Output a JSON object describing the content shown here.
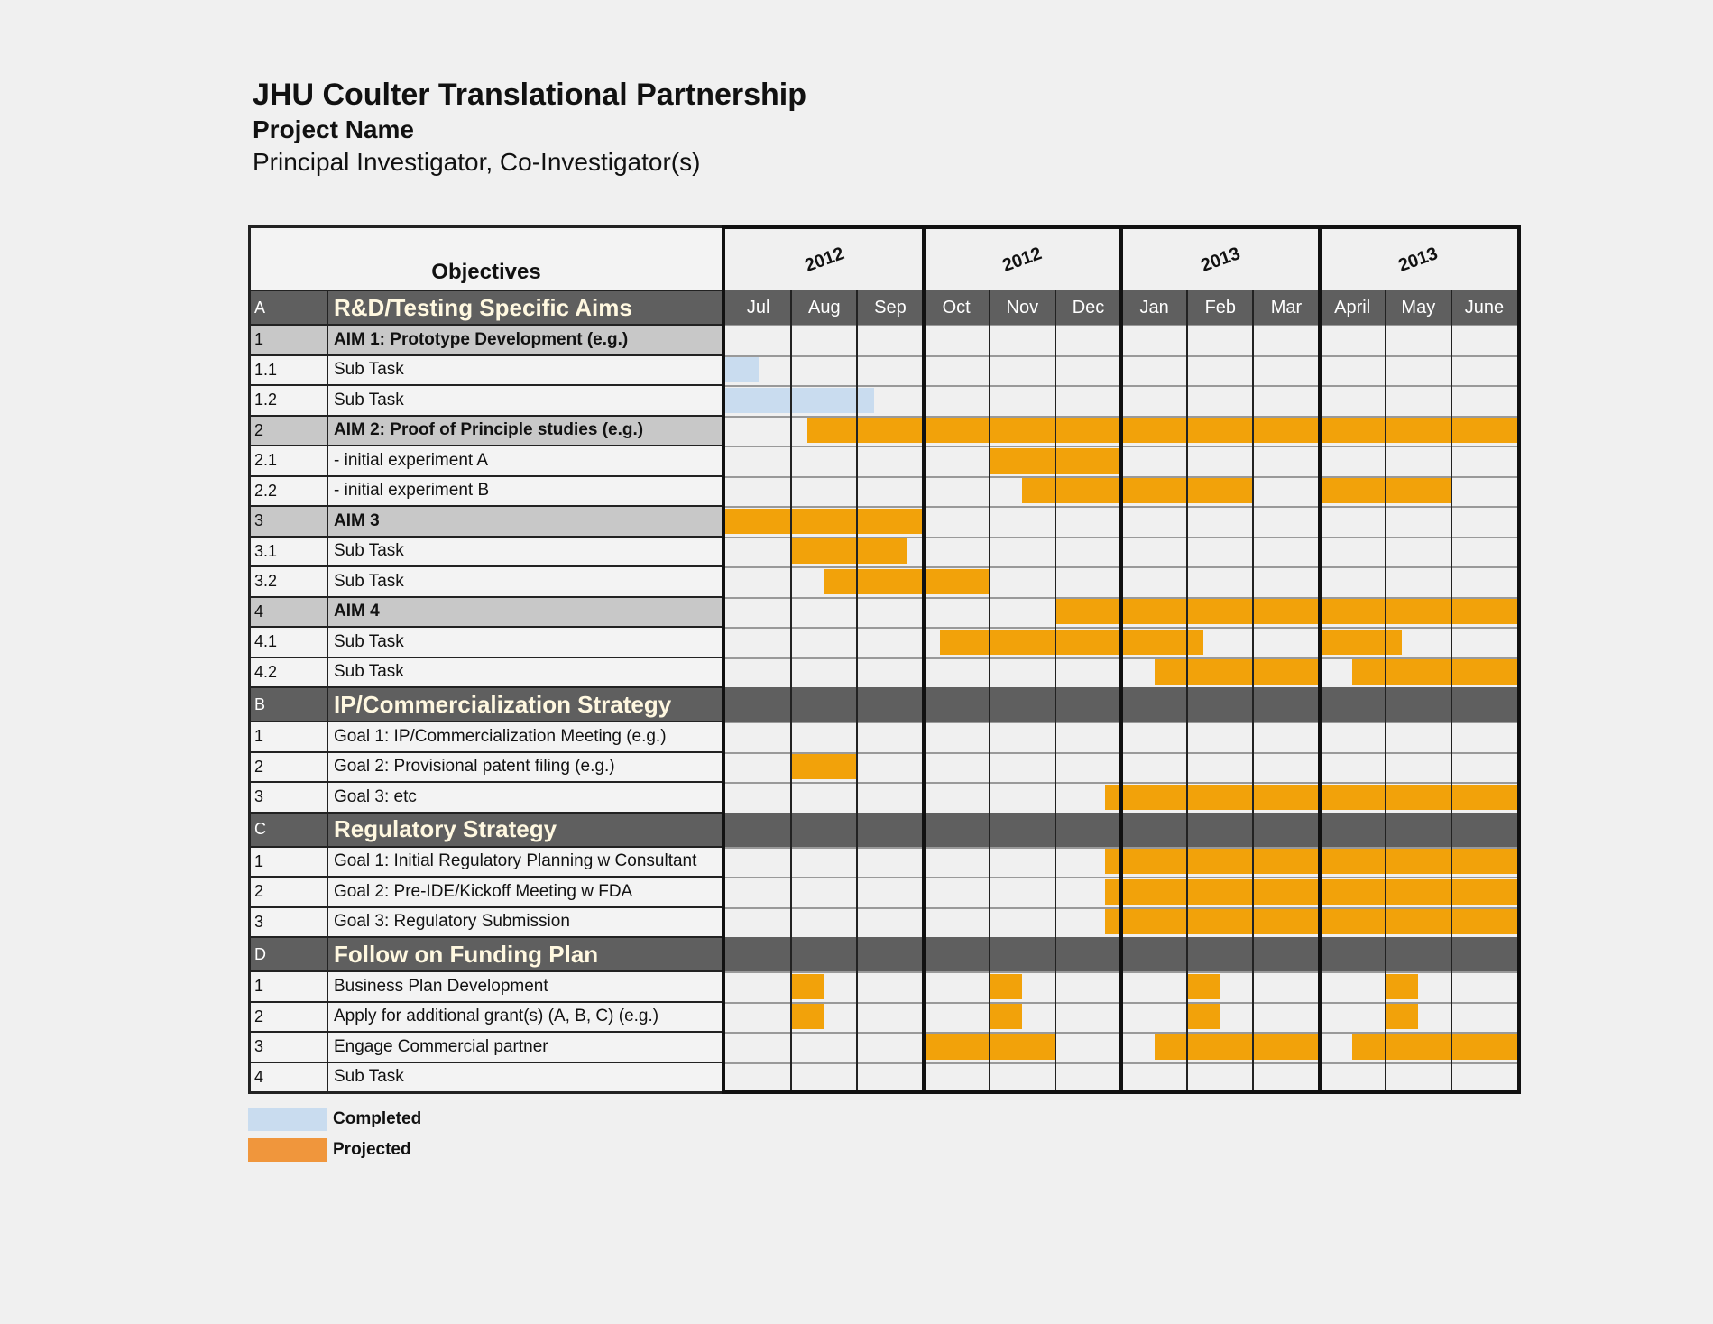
{
  "header": {
    "title": "JHU Coulter Translational Partnership",
    "subtitle": "Project Name",
    "investigators": "Principal Investigator, Co-Investigator(s)"
  },
  "objectives_label": "Objectives",
  "years": [
    "2012",
    "2012",
    "2013",
    "2013"
  ],
  "months": [
    "Jul",
    "Aug",
    "Sep",
    "Oct",
    "Nov",
    "Dec",
    "Jan",
    "Feb",
    "Mar",
    "April",
    "May",
    "June"
  ],
  "rows": [
    {
      "id": "A",
      "label": "R&D/Testing Specific Aims",
      "type": "section",
      "bars": []
    },
    {
      "id": "1",
      "label": "AIM 1: Prototype Development (e.g.)",
      "type": "aim",
      "bars": []
    },
    {
      "id": "1.1",
      "label": "Sub Task",
      "type": "task",
      "bars": [
        {
          "start": 0,
          "end": 0.5,
          "status": "completed"
        }
      ]
    },
    {
      "id": "1.2",
      "label": "Sub Task",
      "type": "task",
      "bars": [
        {
          "start": 0,
          "end": 2.25,
          "status": "completed"
        }
      ]
    },
    {
      "id": "2",
      "label": "AIM 2: Proof of Principle studies (e.g.)",
      "type": "aim",
      "bars": [
        {
          "start": 1.25,
          "end": 12,
          "status": "projected"
        }
      ]
    },
    {
      "id": "2.1",
      "label": " - initial experiment A",
      "type": "task",
      "bars": [
        {
          "start": 4,
          "end": 6,
          "status": "projected"
        }
      ]
    },
    {
      "id": "2.2",
      "label": " - initial experiment B",
      "type": "task",
      "bars": [
        {
          "start": 4.5,
          "end": 8,
          "status": "projected"
        },
        {
          "start": 9,
          "end": 11,
          "status": "projected"
        }
      ]
    },
    {
      "id": "3",
      "label": "AIM 3",
      "type": "aim",
      "bars": [
        {
          "start": 0,
          "end": 3,
          "status": "projected"
        }
      ]
    },
    {
      "id": "3.1",
      "label": "Sub Task",
      "type": "task",
      "bars": [
        {
          "start": 1,
          "end": 2.75,
          "status": "projected"
        }
      ]
    },
    {
      "id": "3.2",
      "label": "Sub Task",
      "type": "task",
      "bars": [
        {
          "start": 1.5,
          "end": 4,
          "status": "projected"
        }
      ]
    },
    {
      "id": "4",
      "label": "AIM 4",
      "type": "aim",
      "bars": [
        {
          "start": 5,
          "end": 12,
          "status": "projected"
        }
      ]
    },
    {
      "id": "4.1",
      "label": "Sub Task",
      "type": "task",
      "bars": [
        {
          "start": 3.25,
          "end": 7.25,
          "status": "projected"
        },
        {
          "start": 9,
          "end": 10.25,
          "status": "projected"
        }
      ]
    },
    {
      "id": "4.2",
      "label": "Sub Task",
      "type": "task",
      "bars": [
        {
          "start": 6.5,
          "end": 9,
          "status": "projected"
        },
        {
          "start": 9.5,
          "end": 12,
          "status": "projected"
        }
      ]
    },
    {
      "id": "B",
      "label": "IP/Commercialization Strategy",
      "type": "section",
      "bars": []
    },
    {
      "id": "1",
      "label": "Goal 1: IP/Commercialization Meeting (e.g.)",
      "type": "task",
      "bars": []
    },
    {
      "id": "2",
      "label": "Goal 2: Provisional patent filing (e.g.)",
      "type": "task",
      "bars": [
        {
          "start": 1,
          "end": 2,
          "status": "projected"
        }
      ]
    },
    {
      "id": "3",
      "label": "Goal 3: etc",
      "type": "task",
      "bars": [
        {
          "start": 5.75,
          "end": 12,
          "status": "projected"
        }
      ]
    },
    {
      "id": "C",
      "label": "Regulatory Strategy",
      "type": "section",
      "bars": []
    },
    {
      "id": "1",
      "label": "Goal 1: Initial Regulatory Planning w Consultant",
      "type": "task",
      "bars": [
        {
          "start": 5.75,
          "end": 12,
          "status": "projected"
        }
      ]
    },
    {
      "id": "2",
      "label": "Goal 2: Pre-IDE/Kickoff Meeting w FDA",
      "type": "task",
      "bars": [
        {
          "start": 5.75,
          "end": 12,
          "status": "projected"
        }
      ]
    },
    {
      "id": "3",
      "label": "Goal 3: Regulatory Submission",
      "type": "task",
      "bars": [
        {
          "start": 5.75,
          "end": 12,
          "status": "projected"
        }
      ]
    },
    {
      "id": "D",
      "label": "Follow on Funding Plan",
      "type": "section",
      "bars": []
    },
    {
      "id": "1",
      "label": "Business Plan Development",
      "type": "task",
      "bars": [
        {
          "start": 1,
          "end": 1.5,
          "status": "projected"
        },
        {
          "start": 4,
          "end": 4.5,
          "status": "projected"
        },
        {
          "start": 7,
          "end": 7.5,
          "status": "projected"
        },
        {
          "start": 10,
          "end": 10.5,
          "status": "projected"
        }
      ]
    },
    {
      "id": "2",
      "label": "Apply for additional grant(s) (A, B, C) (e.g.)",
      "type": "task",
      "bars": [
        {
          "start": 1,
          "end": 1.5,
          "status": "projected"
        },
        {
          "start": 4,
          "end": 4.5,
          "status": "projected"
        },
        {
          "start": 7,
          "end": 7.5,
          "status": "projected"
        },
        {
          "start": 10,
          "end": 10.5,
          "status": "projected"
        }
      ]
    },
    {
      "id": "3",
      "label": "Engage Commercial partner",
      "type": "task",
      "bars": [
        {
          "start": 3,
          "end": 5,
          "status": "projected"
        },
        {
          "start": 6.5,
          "end": 9,
          "status": "projected"
        },
        {
          "start": 9.5,
          "end": 12,
          "status": "projected"
        }
      ]
    },
    {
      "id": "4",
      "label": "Sub Task",
      "type": "task",
      "bars": []
    }
  ],
  "legend": [
    {
      "label": "Completed",
      "status": "completed"
    },
    {
      "label": "Projected",
      "status": "projected"
    }
  ],
  "colors": {
    "projected": "#f2a20a",
    "completed": "#c9dcef",
    "section_band": "#5f5f5f",
    "aim_row": "#c8c8c8"
  }
}
